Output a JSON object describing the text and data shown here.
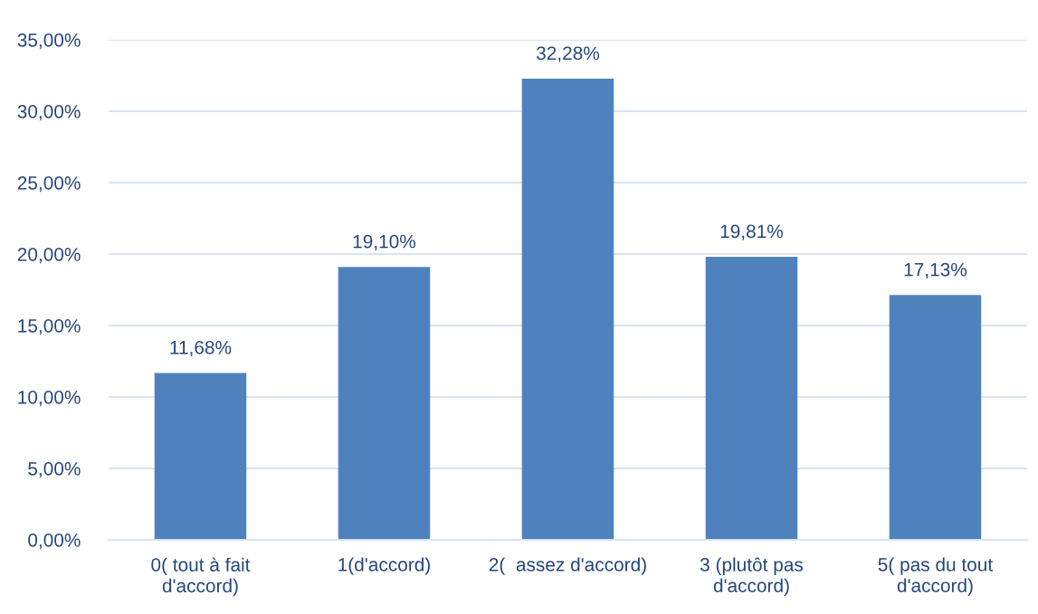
{
  "chart_data": {
    "type": "bar",
    "categories": [
      "0( tout à fait d'accord)",
      "1(d'accord)",
      "2(  assez d'accord)",
      "3 (plutôt pas d'accord)",
      "5( pas du tout d'accord)"
    ],
    "values": [
      11.68,
      19.1,
      32.28,
      19.81,
      17.13
    ],
    "value_labels": [
      "11,68%",
      "19,10%",
      "32,28%",
      "19,81%",
      "17,13%"
    ],
    "color": "#4f81bd",
    "ylim": [
      0,
      35
    ],
    "yticks": [
      {
        "value": 0,
        "label": "0,00%"
      },
      {
        "value": 5,
        "label": "5,00%"
      },
      {
        "value": 10,
        "label": "10,00%"
      },
      {
        "value": 15,
        "label": "15,00%"
      },
      {
        "value": 20,
        "label": "20,00%"
      },
      {
        "value": 25,
        "label": "25,00%"
      },
      {
        "value": 30,
        "label": "30,00%"
      },
      {
        "value": 35,
        "label": "35,00%"
      }
    ],
    "grid": "y"
  }
}
